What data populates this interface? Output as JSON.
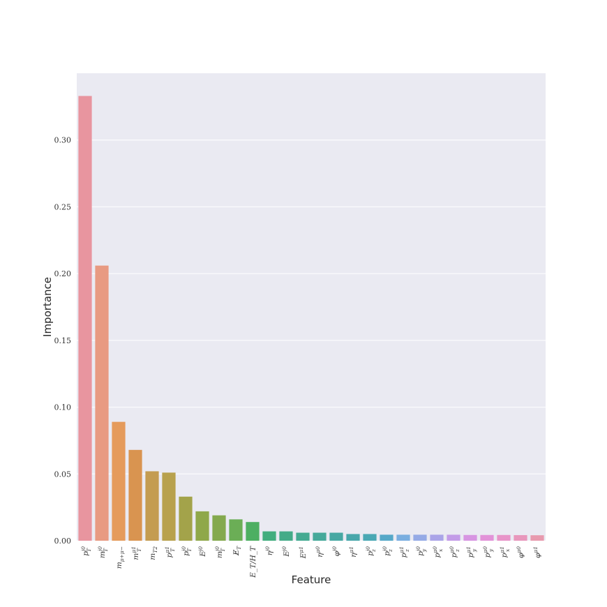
{
  "chart_data": {
    "type": "bar",
    "title": "",
    "xlabel": "Feature",
    "ylabel": "Importance",
    "ylim": [
      0,
      0.35
    ],
    "yticks": [
      "0.00",
      "0.05",
      "0.10",
      "0.15",
      "0.20",
      "0.25",
      "0.30"
    ],
    "grid": true,
    "background": "#eaeaf2",
    "categories": [
      "p_T^{j0}",
      "m_T^{j0}",
      "m_{μ+μ−}",
      "m_T^{μ1}",
      "m_{T2}",
      "p_T^{μ1}",
      "p_T^{j0}",
      "E^{j0}",
      "m_T^{j0}",
      "E̸_T",
      "E_T/H_T",
      "η^{j0}",
      "E^{j0}",
      "E^{μ1}",
      "η^{μ0}",
      "φ^{j0}",
      "η^{μ1}",
      "p_z^{j0}",
      "p_z^{j0}",
      "p_z^{μ1}",
      "p_y^{j0}",
      "p_x^{μ0}",
      "p_z^{μ0}",
      "p_y^{μ1}",
      "p_y^{μ0}",
      "p_x^{μ1}",
      "φ^{μ0}",
      "φ^{μ1}"
    ],
    "values": [
      0.333,
      0.206,
      0.089,
      0.068,
      0.052,
      0.051,
      0.033,
      0.022,
      0.019,
      0.016,
      0.014,
      0.007,
      0.007,
      0.006,
      0.006,
      0.006,
      0.005,
      0.005,
      0.0045,
      0.0045,
      0.0045,
      0.0045,
      0.0045,
      0.0043,
      0.0043,
      0.0043,
      0.0042,
      0.0041
    ],
    "colors": [
      "#e8959f",
      "#e89a82",
      "#e59b5c",
      "#d99450",
      "#c49c51",
      "#b8a14d",
      "#a3a34a",
      "#8fa84a",
      "#84a94e",
      "#6bae56",
      "#4daf62",
      "#42ad7e",
      "#44ab88",
      "#45aa92",
      "#46a99a",
      "#47a8a3",
      "#48a7ab",
      "#4aa8b4",
      "#55a8c8",
      "#7aaee0",
      "#95aae6",
      "#aaa4e8",
      "#c39ce8",
      "#d795e2",
      "#e292d8",
      "#e894c9",
      "#e897bc",
      "#e89aae"
    ]
  }
}
